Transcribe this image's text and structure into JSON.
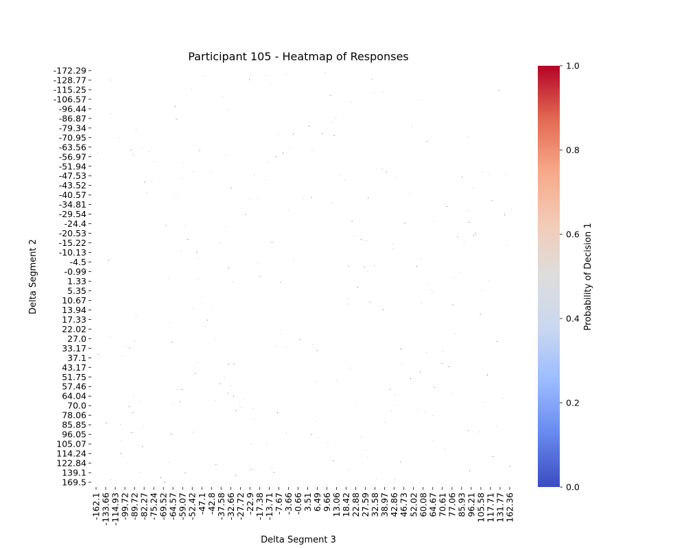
{
  "chart_data": {
    "type": "heatmap",
    "title": "Participant 105 - Heatmap of Responses",
    "xlabel": "Delta Segment 3",
    "ylabel": "Delta Segment 2",
    "y_tick_labels": [
      "-172.29",
      "-128.77",
      "-115.25",
      "-106.57",
      "-96.44",
      "-86.87",
      "-79.34",
      "-70.95",
      "-63.56",
      "-56.97",
      "-51.94",
      "-47.53",
      "-43.52",
      "-40.57",
      "-34.81",
      "-29.54",
      "-24.4",
      "-20.53",
      "-15.22",
      "-10.13",
      "-4.5",
      "-0.99",
      "1.33",
      "5.35",
      "10.67",
      "13.94",
      "17.33",
      "22.02",
      "27.0",
      "33.17",
      "37.1",
      "43.17",
      "51.75",
      "57.46",
      "64.04",
      "70.0",
      "78.06",
      "85.85",
      "96.05",
      "105.07",
      "114.24",
      "122.84",
      "139.1",
      "169.5"
    ],
    "x_tick_labels": [
      "-162.1",
      "-133.66",
      "-114.93",
      "-99.72",
      "-89.72",
      "-82.27",
      "-75.24",
      "-69.52",
      "-64.57",
      "-59.07",
      "-52.42",
      "-47.1",
      "-42.8",
      "-37.58",
      "-32.66",
      "-27.72",
      "-22.9",
      "-17.38",
      "-13.71",
      "-7.67",
      "-3.66",
      "-0.66",
      "3.51",
      "6.49",
      "9.66",
      "13.06",
      "18.42",
      "22.88",
      "27.59",
      "32.58",
      "38.97",
      "42.86",
      "46.73",
      "52.02",
      "60.08",
      "64.67",
      "70.61",
      "77.06",
      "85.93",
      "96.21",
      "105.58",
      "117.71",
      "131.77",
      "162.36"
    ],
    "cell_fill_value": null,
    "note_cells": "Grid of individual responses; nearly every cell is empty/white with only scattered tiny dark specks visible.",
    "colorbar": {
      "label": "Probability of Decision 1",
      "min": 0.0,
      "max": 1.0,
      "ticks": [
        "0.0",
        "0.2",
        "0.4",
        "0.6",
        "0.8",
        "1.0"
      ],
      "colormap": "coolwarm",
      "colors": [
        "#3b4cc0",
        "#6788ee",
        "#9abbff",
        "#c9d7f0",
        "#dddddd",
        "#f2cbb7",
        "#f7a889",
        "#e26952",
        "#b40426"
      ]
    },
    "grid": false,
    "legend": "colorbar-right"
  }
}
